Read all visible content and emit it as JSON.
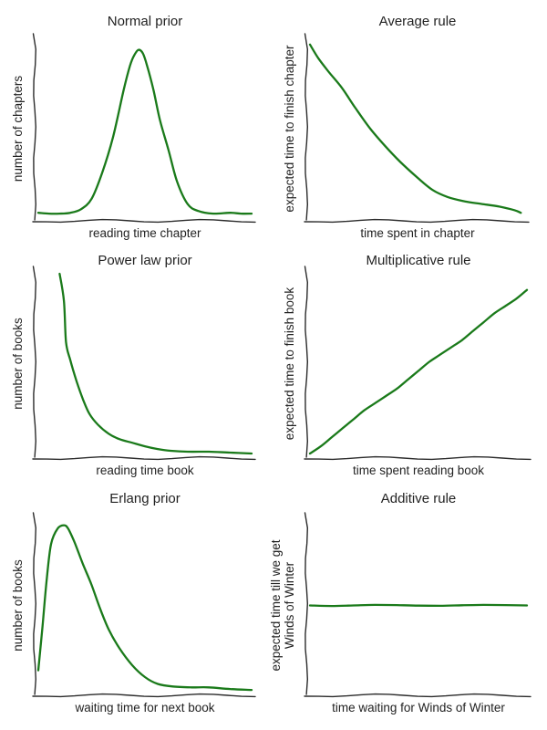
{
  "colors": {
    "curve": "#1a7a1a",
    "axis": "#2b2b2b",
    "text": "#222222"
  },
  "chart_data": [
    {
      "type": "line",
      "title": "Normal prior",
      "xlabel": "reading time chapter",
      "ylabel": "number of chapters",
      "ylim": [
        0,
        1
      ],
      "series": [
        {
          "values": [
            [
              0.0,
              0.02
            ],
            [
              0.05,
              0.015
            ],
            [
              0.1,
              0.015
            ],
            [
              0.15,
              0.02
            ],
            [
              0.2,
              0.04
            ],
            [
              0.25,
              0.1
            ],
            [
              0.3,
              0.25
            ],
            [
              0.35,
              0.45
            ],
            [
              0.4,
              0.72
            ],
            [
              0.43,
              0.86
            ],
            [
              0.45,
              0.92
            ],
            [
              0.47,
              0.95
            ],
            [
              0.49,
              0.93
            ],
            [
              0.51,
              0.86
            ],
            [
              0.54,
              0.72
            ],
            [
              0.57,
              0.55
            ],
            [
              0.61,
              0.38
            ],
            [
              0.65,
              0.2
            ],
            [
              0.7,
              0.07
            ],
            [
              0.75,
              0.03
            ],
            [
              0.82,
              0.015
            ],
            [
              0.9,
              0.02
            ],
            [
              0.95,
              0.015
            ],
            [
              1.0,
              0.015
            ]
          ]
        }
      ]
    },
    {
      "type": "line",
      "title": "Average rule",
      "xlabel": "time spent in chapter",
      "ylabel": "expected time to finish chapter",
      "ylim": [
        0,
        1
      ],
      "series": [
        {
          "values": [
            [
              0.0,
              0.98
            ],
            [
              0.04,
              0.9
            ],
            [
              0.09,
              0.82
            ],
            [
              0.15,
              0.73
            ],
            [
              0.21,
              0.62
            ],
            [
              0.28,
              0.5
            ],
            [
              0.35,
              0.4
            ],
            [
              0.42,
              0.31
            ],
            [
              0.5,
              0.22
            ],
            [
              0.57,
              0.15
            ],
            [
              0.64,
              0.11
            ],
            [
              0.72,
              0.085
            ],
            [
              0.8,
              0.07
            ],
            [
              0.88,
              0.055
            ],
            [
              0.95,
              0.035
            ],
            [
              0.98,
              0.02
            ]
          ]
        }
      ]
    },
    {
      "type": "line",
      "title": "Power law prior",
      "xlabel": "reading time book",
      "ylabel": "number of books",
      "ylim": [
        0,
        1
      ],
      "series": [
        {
          "values": [
            [
              0.1,
              1.0
            ],
            [
              0.12,
              0.85
            ],
            [
              0.13,
              0.62
            ],
            [
              0.15,
              0.52
            ],
            [
              0.18,
              0.4
            ],
            [
              0.21,
              0.3
            ],
            [
              0.24,
              0.22
            ],
            [
              0.28,
              0.16
            ],
            [
              0.33,
              0.11
            ],
            [
              0.38,
              0.08
            ],
            [
              0.44,
              0.06
            ],
            [
              0.5,
              0.04
            ],
            [
              0.56,
              0.025
            ],
            [
              0.62,
              0.015
            ],
            [
              0.7,
              0.01
            ],
            [
              0.8,
              0.01
            ],
            [
              0.9,
              0.005
            ],
            [
              1.0,
              0.0
            ]
          ]
        }
      ]
    },
    {
      "type": "line",
      "title": "Multiplicative rule",
      "xlabel": "time spent reading book",
      "ylabel": "expected time to finish book",
      "ylim": [
        0,
        1
      ],
      "series": [
        {
          "values": [
            [
              0.0,
              0.0
            ],
            [
              0.05,
              0.04
            ],
            [
              0.1,
              0.09
            ],
            [
              0.15,
              0.14
            ],
            [
              0.2,
              0.19
            ],
            [
              0.25,
              0.24
            ],
            [
              0.3,
              0.28
            ],
            [
              0.35,
              0.32
            ],
            [
              0.4,
              0.36
            ],
            [
              0.45,
              0.41
            ],
            [
              0.5,
              0.46
            ],
            [
              0.55,
              0.51
            ],
            [
              0.6,
              0.55
            ],
            [
              0.65,
              0.59
            ],
            [
              0.7,
              0.63
            ],
            [
              0.75,
              0.68
            ],
            [
              0.8,
              0.73
            ],
            [
              0.85,
              0.78
            ],
            [
              0.9,
              0.82
            ],
            [
              0.95,
              0.86
            ],
            [
              1.0,
              0.91
            ]
          ]
        }
      ]
    },
    {
      "type": "line",
      "title": "Erlang prior",
      "xlabel": "waiting time for next book",
      "ylabel": "number of books",
      "ylim": [
        0,
        1
      ],
      "series": [
        {
          "values": [
            [
              0.0,
              0.12
            ],
            [
              0.02,
              0.38
            ],
            [
              0.04,
              0.66
            ],
            [
              0.06,
              0.86
            ],
            [
              0.09,
              0.95
            ],
            [
              0.12,
              0.97
            ],
            [
              0.14,
              0.95
            ],
            [
              0.17,
              0.87
            ],
            [
              0.21,
              0.74
            ],
            [
              0.25,
              0.62
            ],
            [
              0.29,
              0.48
            ],
            [
              0.33,
              0.36
            ],
            [
              0.38,
              0.25
            ],
            [
              0.44,
              0.15
            ],
            [
              0.5,
              0.08
            ],
            [
              0.56,
              0.04
            ],
            [
              0.63,
              0.025
            ],
            [
              0.72,
              0.02
            ],
            [
              0.8,
              0.02
            ],
            [
              0.9,
              0.01
            ],
            [
              1.0,
              0.005
            ]
          ]
        }
      ]
    },
    {
      "type": "line",
      "title": "Additive rule",
      "xlabel": "time waiting for Winds of Winter",
      "ylabel": [
        "expected time till we get",
        "Winds of Winter"
      ],
      "ylim": [
        0,
        1
      ],
      "series": [
        {
          "values": [
            [
              0.0,
              0.5
            ],
            [
              0.1,
              0.497
            ],
            [
              0.2,
              0.5
            ],
            [
              0.3,
              0.503
            ],
            [
              0.4,
              0.502
            ],
            [
              0.5,
              0.499
            ],
            [
              0.6,
              0.498
            ],
            [
              0.7,
              0.501
            ],
            [
              0.8,
              0.503
            ],
            [
              0.9,
              0.502
            ],
            [
              1.0,
              0.5
            ]
          ]
        }
      ]
    }
  ]
}
